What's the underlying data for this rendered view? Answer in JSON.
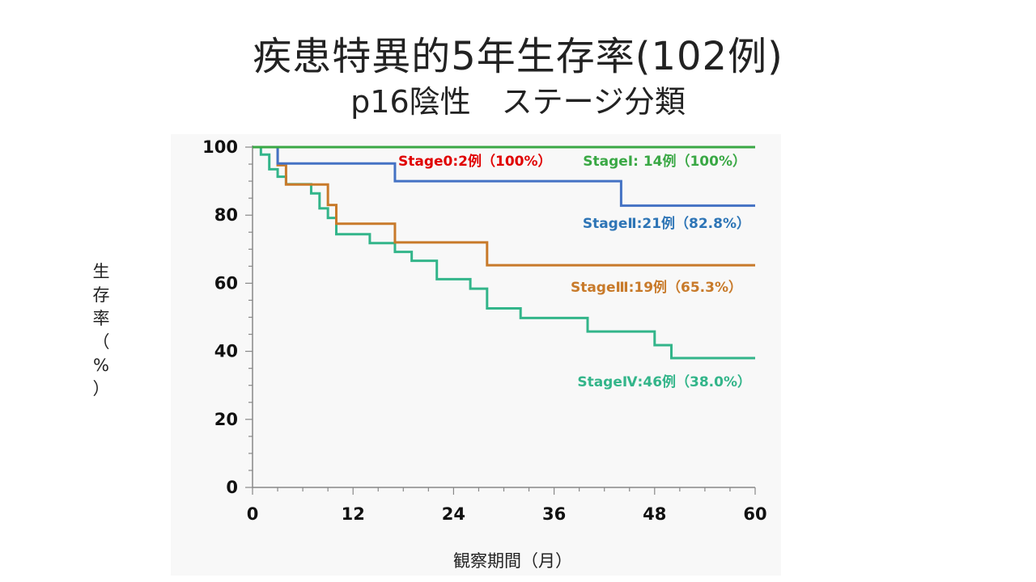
{
  "slide": {
    "title": "疾患特異的5年生存率(102例)",
    "subtitle": "p16陰性　ステージ分類"
  },
  "chart_data": {
    "type": "line",
    "subtype": "kaplan-meier step",
    "title": "疾患特異的5年生存率(102例)",
    "subtitle": "p16陰性　ステージ分類",
    "xlabel": "観察期間（月）",
    "ylabel": "生存率（%）",
    "xlim": [
      0,
      60
    ],
    "ylim": [
      0,
      100
    ],
    "xticks": [
      0,
      12,
      24,
      36,
      48,
      60
    ],
    "yticks": [
      0,
      20,
      40,
      60,
      80,
      100
    ],
    "grid": false,
    "series": [
      {
        "name": "Stage0:2例（100%）",
        "color": "#e00000",
        "x": [
          0,
          60
        ],
        "y": [
          100,
          100
        ]
      },
      {
        "name": "StageⅠ: 14例（100%）",
        "color": "#3aa845",
        "x": [
          0,
          60
        ],
        "y": [
          100,
          100
        ]
      },
      {
        "name": "StageⅡ:21例（82.8%）",
        "color": "#4472c4",
        "x": [
          0,
          3,
          17,
          44,
          60
        ],
        "y": [
          100,
          95.2,
          90.0,
          82.8,
          82.8
        ]
      },
      {
        "name": "StageⅢ:19例（65.3%）",
        "color": "#c87a2a",
        "x": [
          0,
          3,
          4,
          9,
          10,
          17,
          28,
          60
        ],
        "y": [
          100,
          94.7,
          89.0,
          83.0,
          77.5,
          72.0,
          65.3,
          65.3
        ]
      },
      {
        "name": "StageⅣ:46例（38.0%）",
        "color": "#33b58a",
        "x": [
          0,
          1,
          2,
          3,
          4,
          7,
          8,
          9,
          10,
          14,
          17,
          19,
          22,
          26,
          28,
          32,
          40,
          48,
          50,
          60
        ],
        "y": [
          100,
          97.8,
          93.5,
          91.3,
          89.1,
          86.4,
          82.0,
          79.2,
          74.4,
          71.8,
          69.2,
          66.6,
          61.2,
          58.4,
          52.6,
          49.8,
          45.8,
          41.8,
          38.0,
          38.0
        ]
      }
    ],
    "annotations": [
      {
        "text": "Stage0:2例（100%）",
        "color": "#e00000"
      },
      {
        "text": "StageⅠ: 14例（100%）",
        "color": "#3aa845"
      },
      {
        "text": "StageⅡ:21例（82.8%）",
        "color": "#2e75b6"
      },
      {
        "text": "StageⅢ:19例（65.3%）",
        "color": "#c87a2a"
      },
      {
        "text": "StageⅣ:46例（38.0%）",
        "color": "#33b58a"
      }
    ]
  }
}
